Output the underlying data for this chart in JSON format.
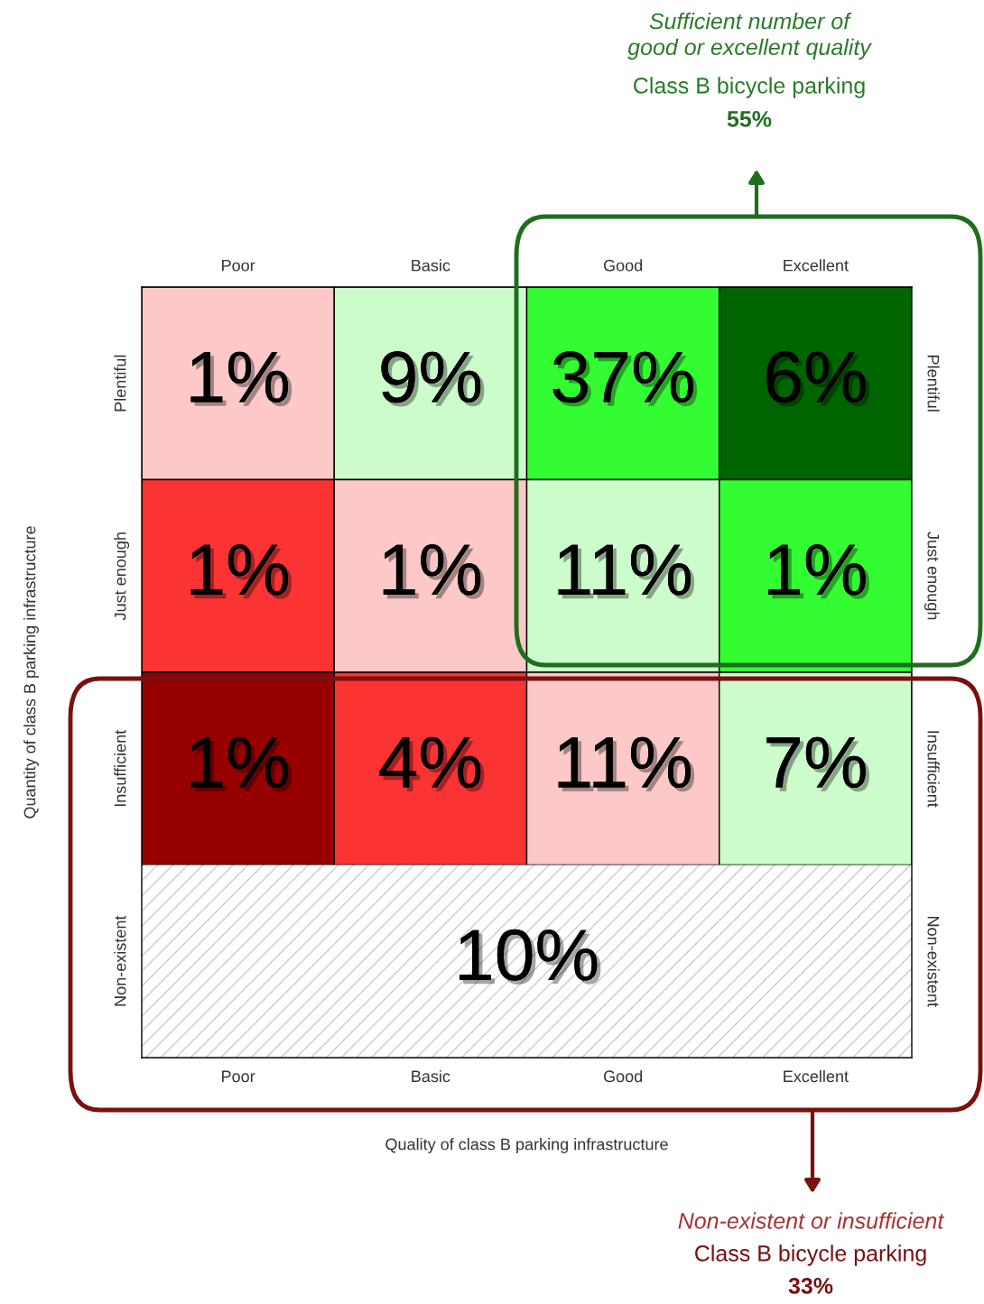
{
  "chart_data": {
    "type": "heatmap",
    "categories": [
      "Poor",
      "Basic",
      "Good",
      "Excellent"
    ],
    "y_categories": [
      "Plentiful",
      "Just enough",
      "Insufficient",
      "Non-existent"
    ],
    "y2_categories": [
      "Plentiful",
      "Just enough",
      "Insufficient",
      "Non-existent"
    ],
    "cells": [
      [
        1,
        9,
        37,
        6
      ],
      [
        1,
        1,
        11,
        1
      ],
      [
        1,
        4,
        11,
        7
      ],
      [
        null,
        null,
        null,
        null
      ]
    ],
    "cell_labels": [
      [
        "1%",
        "9%",
        "37%",
        "6%"
      ],
      [
        "1%",
        "1%",
        "11%",
        "1%"
      ],
      [
        "1%",
        "4%",
        "11%",
        "7%"
      ],
      [
        null,
        null,
        null,
        null
      ]
    ],
    "colors": [
      [
        "#fcc8c8",
        "#ccfccc",
        "#33fc33",
        "#006400"
      ],
      [
        "#fc3333",
        "#fcc8c8",
        "#ccfccc",
        "#33fc33"
      ],
      [
        "#960000",
        "#fc3333",
        "#fcc8c8",
        "#ccfccc"
      ],
      [
        null,
        null,
        null,
        null
      ]
    ],
    "xlabel": "Quality of class B parking infrastructure",
    "ylabel": "Quantity of class B parking infrastructure",
    "annotations": [
      "Sufficient number of\ngood or excellent quality",
      "Class B bicycle parking",
      "55%",
      "Non-existent or insufficient",
      "Class B bicycle parking",
      "33%",
      "10%"
    ]
  }
}
